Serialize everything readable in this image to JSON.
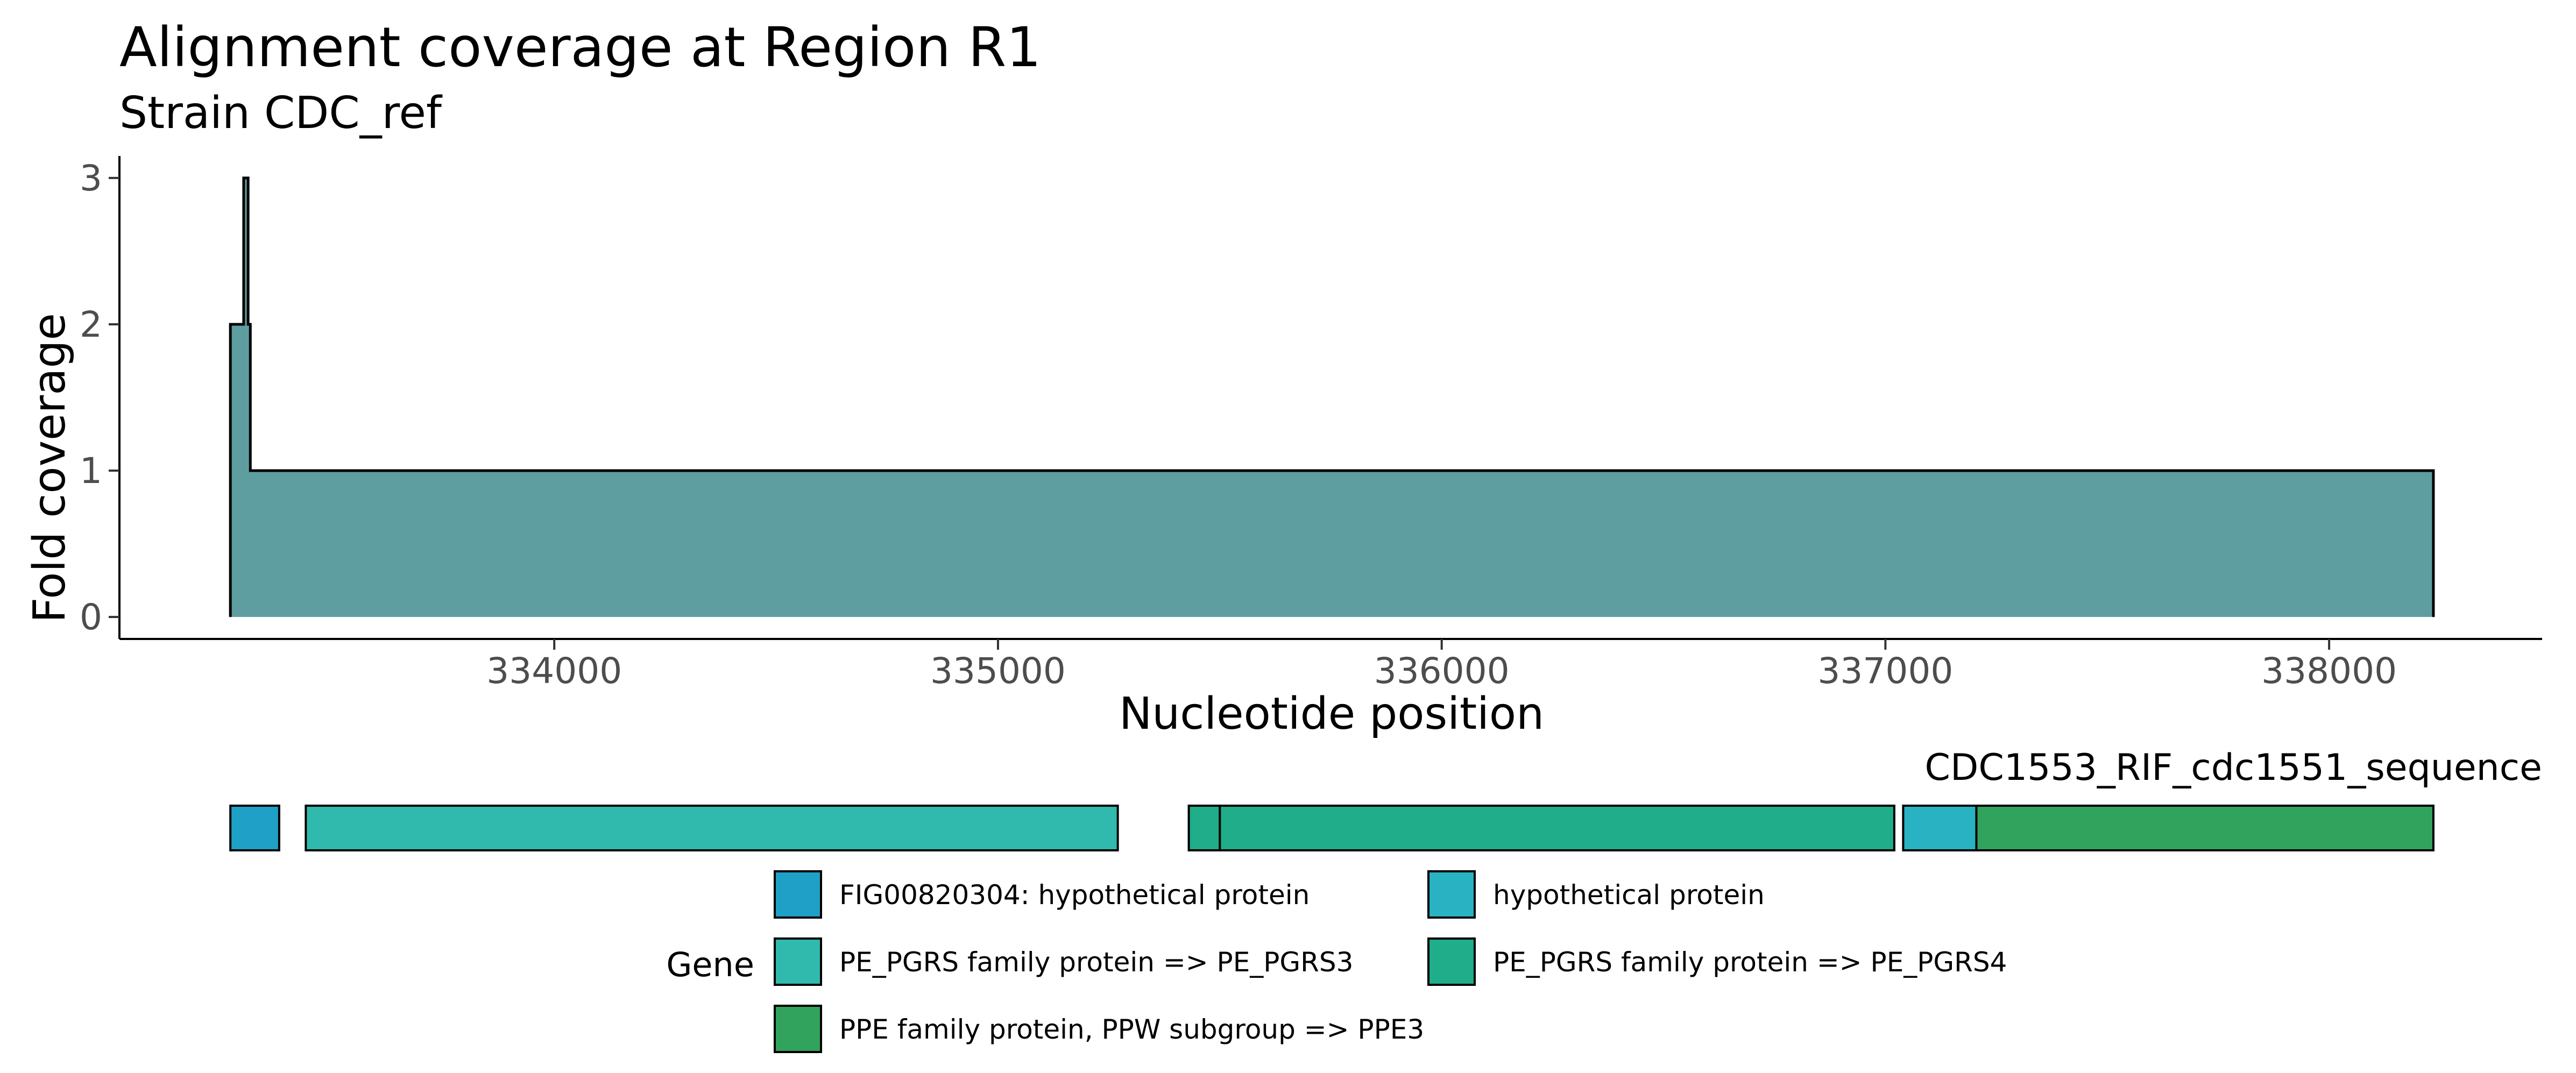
{
  "chart_data": {
    "type": "area",
    "title": "Alignment coverage at Region R1",
    "subtitle": "Strain CDC_ref",
    "xlabel": "Nucleotide position",
    "ylabel": "Fold coverage",
    "xlim": [
      333020,
      338480
    ],
    "ylim": [
      -0.15,
      3.15
    ],
    "xticks": [
      334000,
      335000,
      336000,
      337000,
      338000
    ],
    "xtick_labels": [
      "334000",
      "335000",
      "336000",
      "337000",
      "338000"
    ],
    "yticks": [
      0,
      1,
      2,
      3
    ],
    "ytick_labels": [
      "0",
      "1",
      "2",
      "3"
    ],
    "grid": false,
    "fill_color": "#5f9ea0",
    "coverage": [
      {
        "start": 333270,
        "end": 333300,
        "value": 2
      },
      {
        "start": 333300,
        "end": 333310,
        "value": 3
      },
      {
        "start": 333310,
        "end": 333310,
        "value": 2
      },
      {
        "start": 333310,
        "end": 333310,
        "value": 2
      },
      {
        "start": 333310,
        "end": 333310,
        "value": 2
      },
      {
        "start": 333310,
        "end": 333315,
        "value": 2
      },
      {
        "start": 333315,
        "end": 338235,
        "value": 1
      }
    ],
    "sequence_label": "CDC1553_RIF_cdc1551_sequence",
    "genes": [
      {
        "start": 333270,
        "end": 333380,
        "gene": "FIG00820304: hypothetical protein"
      },
      {
        "start": 333440,
        "end": 335270,
        "gene": "PE_PGRS family protein => PE_PGRS3"
      },
      {
        "start": 335430,
        "end": 335500,
        "gene": "PE_PGRS family protein => PE_PGRS4"
      },
      {
        "start": 335500,
        "end": 337020,
        "gene": "PE_PGRS family protein => PE_PGRS4"
      },
      {
        "start": 337040,
        "end": 337205,
        "gene": "hypothetical protein"
      },
      {
        "start": 337205,
        "end": 338235,
        "gene": "PPE family protein, PPW subgroup => PPE3"
      }
    ],
    "legend": {
      "title": "Gene",
      "placement": "bottom",
      "entries": [
        {
          "label": "FIG00820304: hypothetical protein",
          "color": "#1fa0c6"
        },
        {
          "label": "hypothetical protein",
          "color": "#29b3c2"
        },
        {
          "label": "PE_PGRS family protein => PE_PGRS3",
          "color": "#2fbaad"
        },
        {
          "label": "PE_PGRS family protein => PE_PGRS4",
          "color": "#20ad8a"
        },
        {
          "label": "PPE family protein, PPW subgroup => PPE3",
          "color": "#32a35c"
        }
      ]
    }
  }
}
